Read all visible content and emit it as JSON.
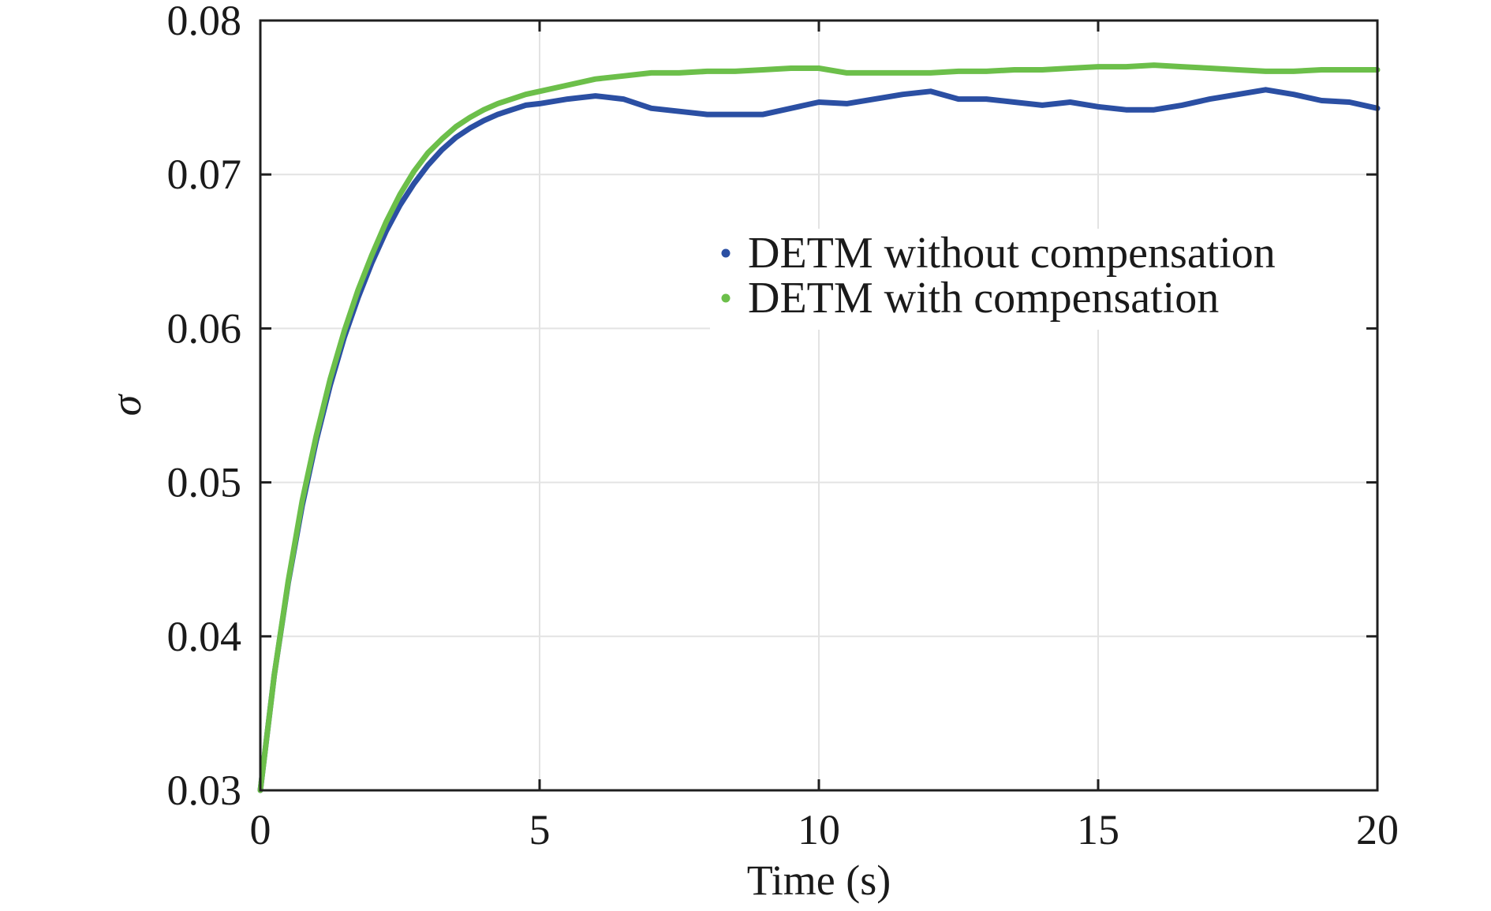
{
  "chart_data": {
    "type": "line",
    "title": "",
    "xlabel": "Time (s)",
    "ylabel": "σ",
    "xlim": [
      0,
      20
    ],
    "ylim": [
      0.03,
      0.08
    ],
    "xticks": [
      0,
      5,
      10,
      15,
      20
    ],
    "yticks": [
      0.03,
      0.04,
      0.05,
      0.06,
      0.07,
      0.08
    ],
    "xtick_labels": [
      "0",
      "5",
      "10",
      "15",
      "20"
    ],
    "ytick_labels": [
      "0.03",
      "0.04",
      "0.05",
      "0.06",
      "0.07",
      "0.08"
    ],
    "grid": true,
    "legend_position": "upper-right",
    "series": [
      {
        "name": "DETM without compensation",
        "color": "#2b4fa3",
        "x": [
          0,
          0.25,
          0.5,
          0.75,
          1.0,
          1.25,
          1.5,
          1.75,
          2.0,
          2.25,
          2.5,
          2.75,
          3.0,
          3.25,
          3.5,
          3.75,
          4.0,
          4.25,
          4.5,
          4.75,
          5.0,
          5.5,
          6.0,
          6.5,
          7.0,
          7.5,
          8.0,
          8.5,
          9.0,
          9.5,
          10.0,
          10.5,
          11.0,
          11.5,
          12.0,
          12.5,
          13.0,
          13.5,
          14.0,
          14.5,
          15.0,
          15.5,
          16.0,
          16.5,
          17.0,
          17.5,
          18.0,
          18.5,
          19.0,
          19.5,
          20.0
        ],
        "y": [
          0.03,
          0.0375,
          0.0435,
          0.0485,
          0.0527,
          0.0563,
          0.0594,
          0.062,
          0.0643,
          0.0663,
          0.068,
          0.0694,
          0.0706,
          0.0716,
          0.0724,
          0.073,
          0.0735,
          0.0739,
          0.0742,
          0.0745,
          0.0746,
          0.0749,
          0.0751,
          0.0749,
          0.0743,
          0.0741,
          0.0739,
          0.0739,
          0.0739,
          0.0743,
          0.0747,
          0.0746,
          0.0749,
          0.0752,
          0.0754,
          0.0749,
          0.0749,
          0.0747,
          0.0745,
          0.0747,
          0.0744,
          0.0742,
          0.0742,
          0.0745,
          0.0749,
          0.0752,
          0.0755,
          0.0752,
          0.0748,
          0.0747,
          0.0743
        ]
      },
      {
        "name": "DETM with compensation",
        "color": "#6cbf4a",
        "x": [
          0,
          0.25,
          0.5,
          0.75,
          1.0,
          1.25,
          1.5,
          1.75,
          2.0,
          2.25,
          2.5,
          2.75,
          3.0,
          3.25,
          3.5,
          3.75,
          4.0,
          4.25,
          4.5,
          4.75,
          5.0,
          5.5,
          6.0,
          6.5,
          7.0,
          7.5,
          8.0,
          8.5,
          9.0,
          9.5,
          10.0,
          10.5,
          11.0,
          11.5,
          12.0,
          12.5,
          13.0,
          13.5,
          14.0,
          14.5,
          15.0,
          15.5,
          16.0,
          16.5,
          17.0,
          17.5,
          18.0,
          18.5,
          19.0,
          19.5,
          20.0
        ],
        "y": [
          0.03,
          0.0375,
          0.0436,
          0.0488,
          0.053,
          0.0567,
          0.0598,
          0.0625,
          0.0648,
          0.0669,
          0.0687,
          0.0702,
          0.0714,
          0.0723,
          0.0731,
          0.0737,
          0.0742,
          0.0746,
          0.0749,
          0.0752,
          0.0754,
          0.0758,
          0.0762,
          0.0764,
          0.0766,
          0.0766,
          0.0767,
          0.0767,
          0.0768,
          0.0769,
          0.0769,
          0.0766,
          0.0766,
          0.0766,
          0.0766,
          0.0767,
          0.0767,
          0.0768,
          0.0768,
          0.0769,
          0.077,
          0.077,
          0.0771,
          0.077,
          0.0769,
          0.0768,
          0.0767,
          0.0767,
          0.0768,
          0.0768,
          0.0768
        ]
      }
    ]
  }
}
